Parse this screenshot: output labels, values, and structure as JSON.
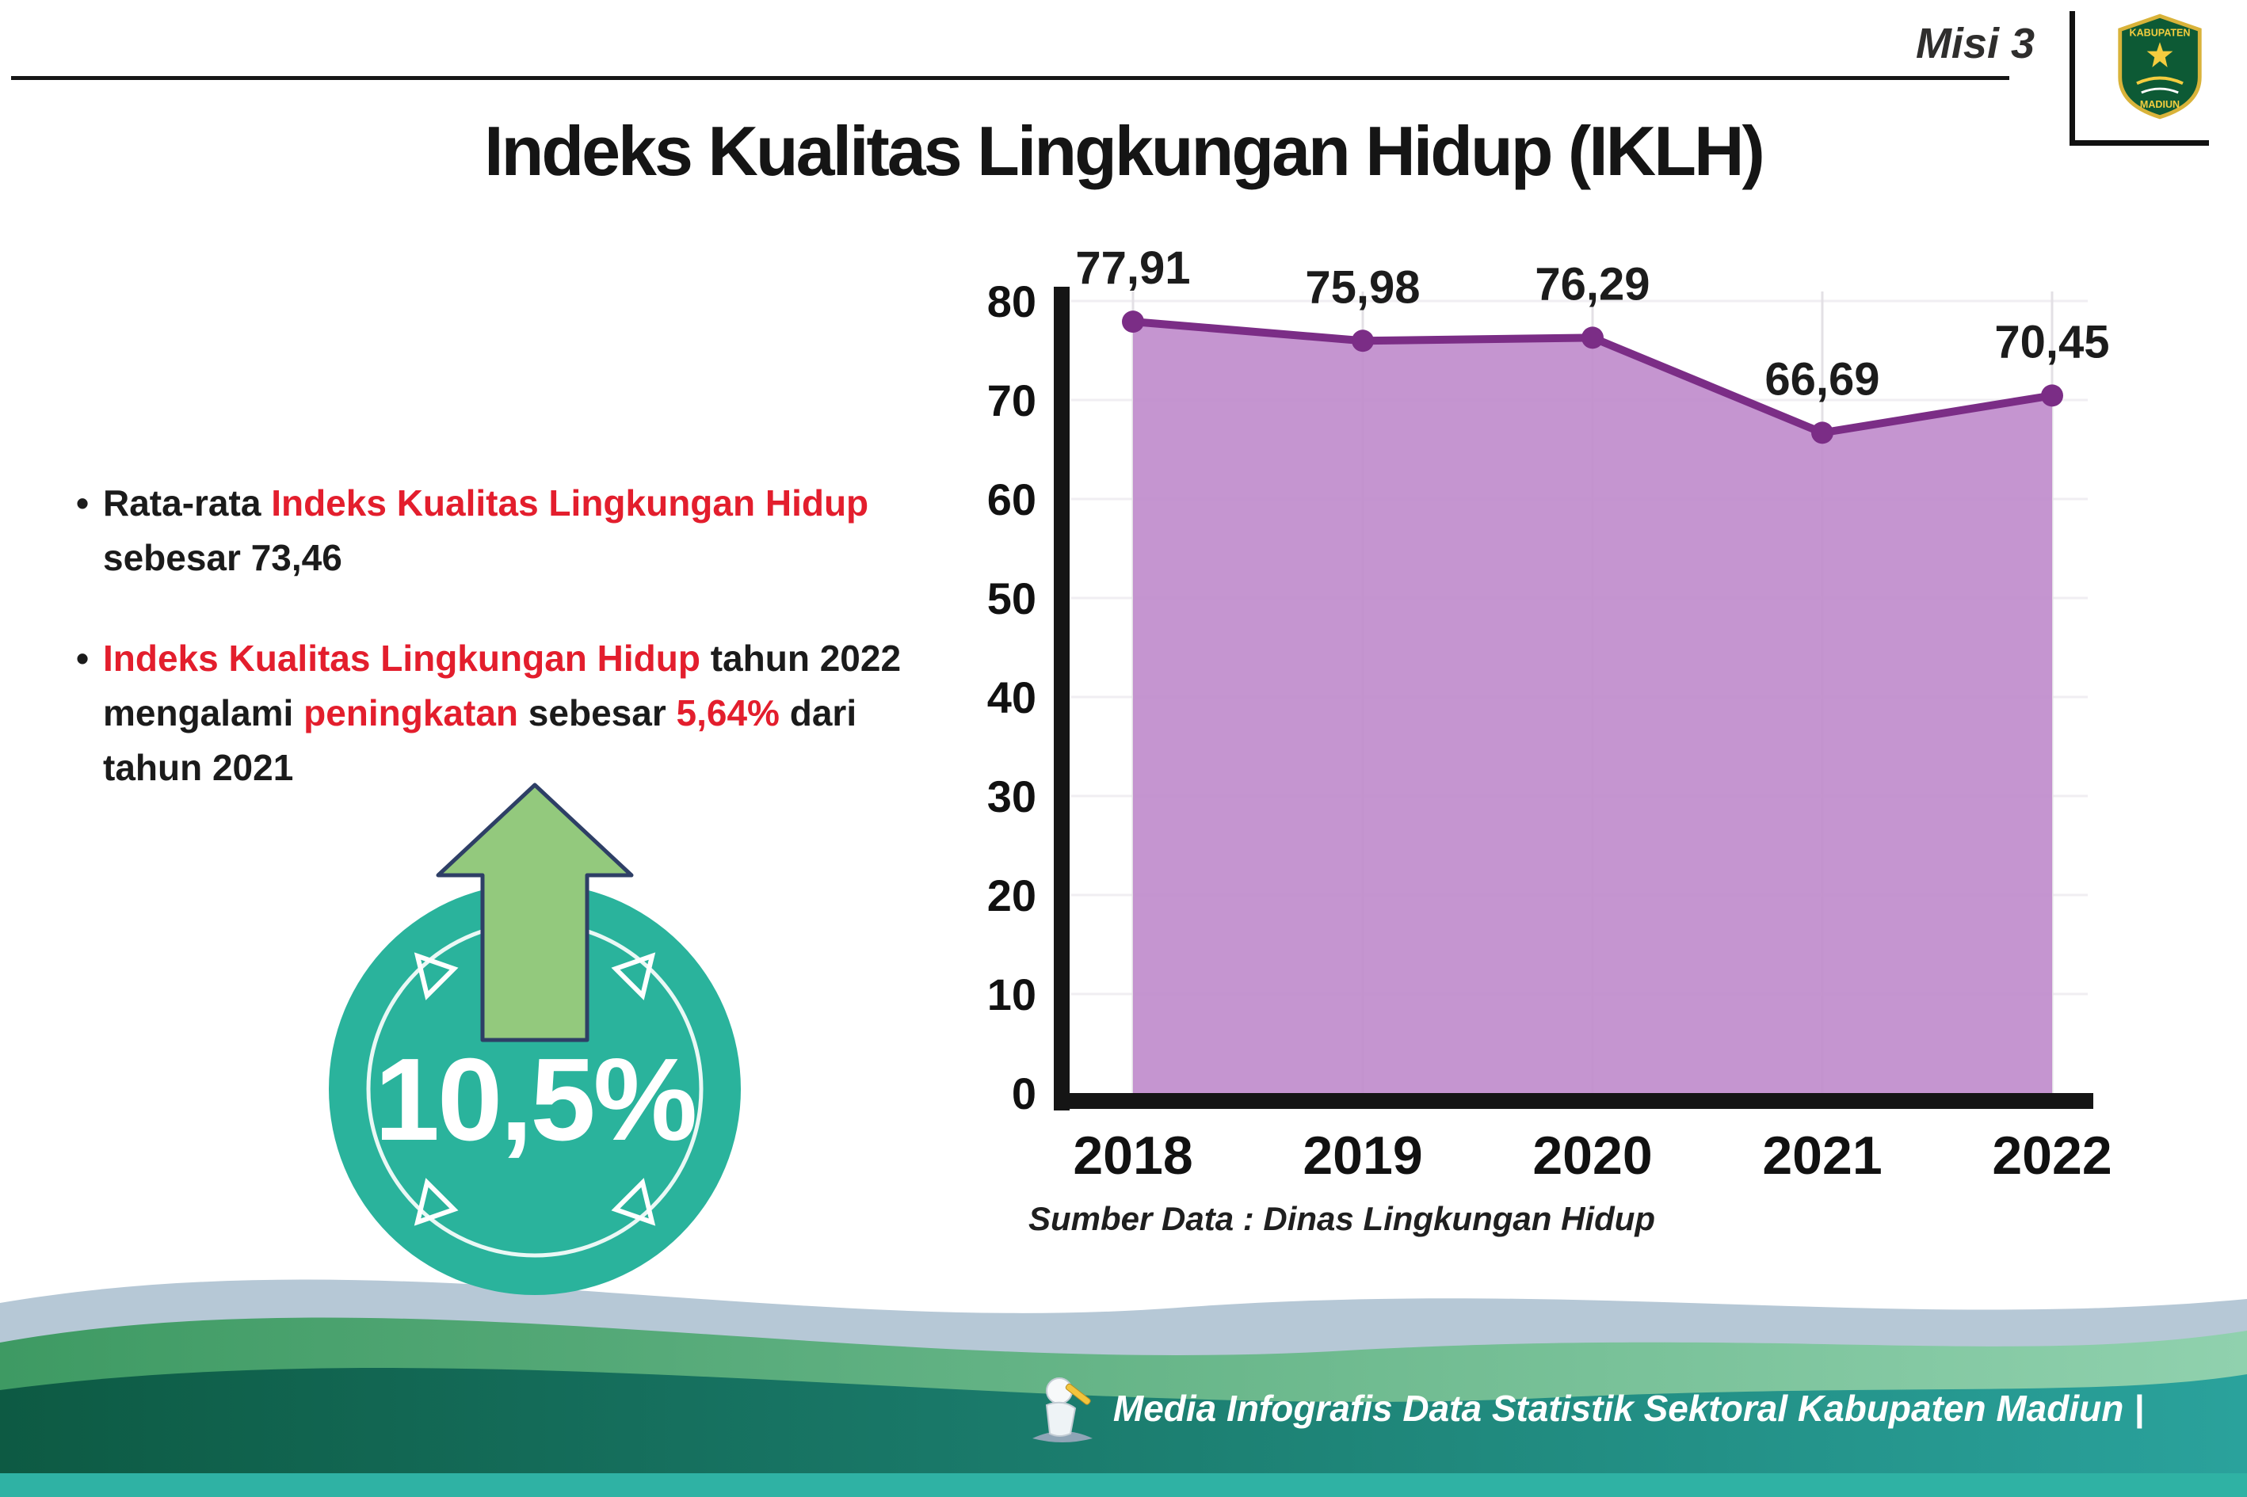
{
  "header": {
    "misi": "Misi 3",
    "title": "Indeks Kualitas Lingkungan Hidup (IKLH)",
    "logo_top": "KABUPATEN",
    "logo_bottom": "MADIUN"
  },
  "bullets": {
    "b1": {
      "pre": "Rata-rata ",
      "red": "Indeks Kualitas Lingkungan Hidup",
      "post": " sebesar 73,46"
    },
    "b2": {
      "red1": "Indeks Kualitas Lingkungan Hidup",
      "t1": " tahun 2022 mengalami ",
      "red2": "peningkatan",
      "t2": " sebesar ",
      "red3": "5,64%",
      "t3": " dari tahun 2021"
    }
  },
  "badge": {
    "value": "10,5%",
    "circle_color": "#2ab39c",
    "arrow_color": "#93c97d"
  },
  "chart_data": {
    "type": "area",
    "title": "Indeks Kualitas Lingkungan Hidup (IKLH)",
    "categories": [
      "2018",
      "2019",
      "2020",
      "2021",
      "2022"
    ],
    "values": [
      77.91,
      75.98,
      76.29,
      66.69,
      70.45
    ],
    "point_labels": [
      "77,91",
      "75,98",
      "76,29",
      "66,69",
      "70,45"
    ],
    "xlabel": "",
    "ylabel": "",
    "ylim": [
      0,
      80
    ],
    "yticks": [
      0,
      10,
      20,
      30,
      40,
      50,
      60,
      70,
      80
    ],
    "grid": true,
    "legend_position": "none",
    "fill_color": "#c08ccc",
    "line_color": "#7b2d86",
    "source": "Sumber Data : Dinas Lingkungan Hidup"
  },
  "footer": {
    "text": "Media Infografis Data Statistik Sektoral Kabupaten Madiun |"
  }
}
